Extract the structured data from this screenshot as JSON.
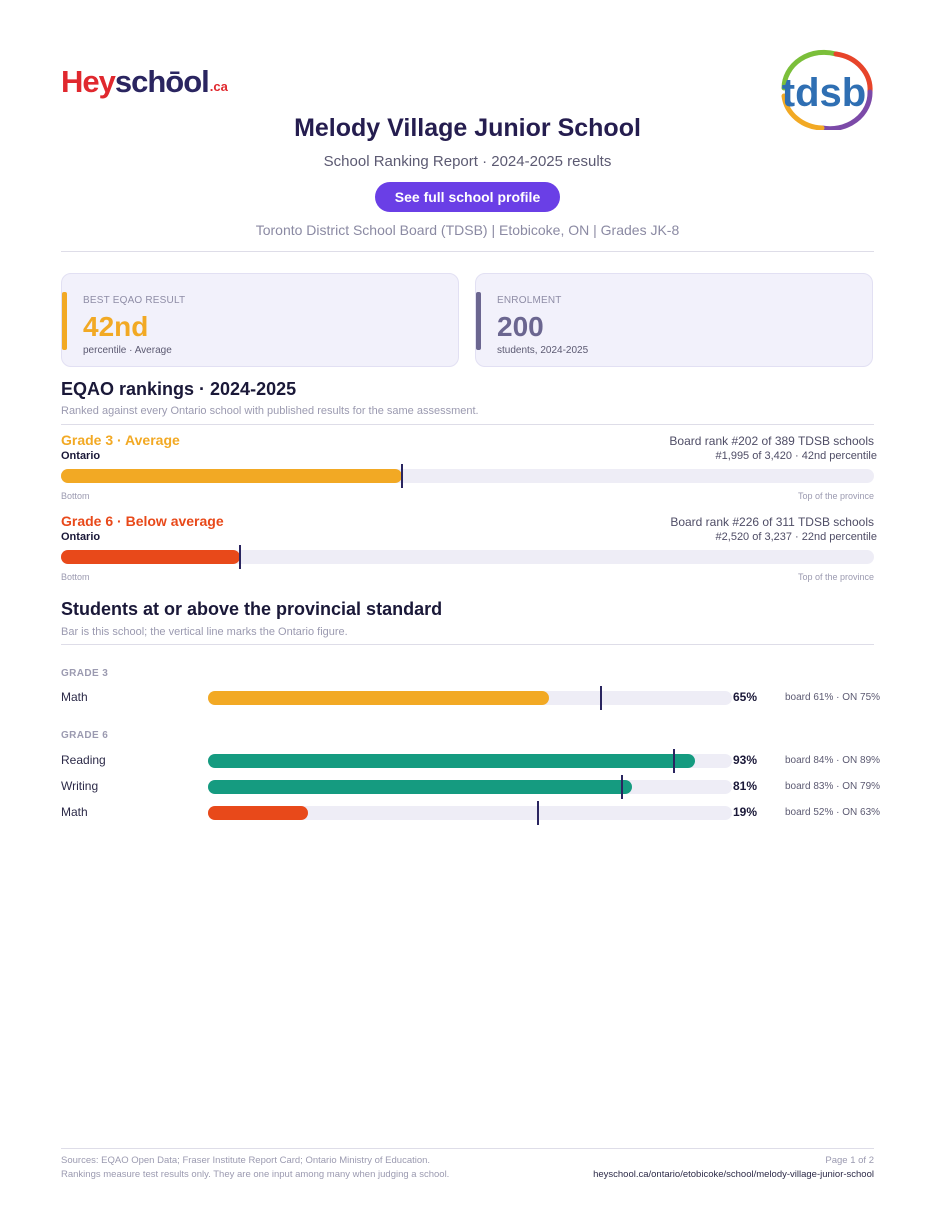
{
  "header": {
    "brand_hey": "Hey",
    "brand_school": "schōol",
    "brand_ca": ".ca",
    "board_logo_text": "tdsb",
    "school_name": "Melody Village Junior School",
    "subtitle": "School Ranking Report  ·  2024-2025 results",
    "profile_button_label": "See full school profile",
    "meta_line": "Toronto District School Board (TDSB)  |  Etobicoke, ON  |  Grades JK-8"
  },
  "cards": {
    "eqao": {
      "label": "BEST EQAO RESULT",
      "value": "42nd",
      "note": "percentile  ·  Average",
      "accent": "#f2a924"
    },
    "enrolment": {
      "label": "ENROLMENT",
      "value": "200",
      "note": "students, 2024-2025",
      "accent": "#6b6690"
    }
  },
  "rankings": {
    "title": "EQAO rankings  ·  2024-2025",
    "subtitle": "Ranked against every Ontario school with published results for the same assessment.",
    "axis_left": "Bottom",
    "axis_right": "Top of the province",
    "items": [
      {
        "label": "Grade 3  ·  Average",
        "scope": "Ontario",
        "board_rank": "Board rank #202 of 389 TDSB schools",
        "province_rank": "#1,995 of 3,420  ·  42nd percentile",
        "percentile": 42,
        "color": "#f2a924"
      },
      {
        "label": "Grade 6  ·  Below average",
        "scope": "Ontario",
        "board_rank": "Board rank #226 of 311 TDSB schools",
        "province_rank": "#2,520 of 3,237  ·  22nd percentile",
        "percentile": 22,
        "color": "#e8491a"
      }
    ]
  },
  "standards": {
    "title": "Students at or above the provincial standard",
    "subtitle": "Bar is this school; the vertical line marks the Ontario figure.",
    "groups": [
      {
        "grade": "GRADE 3",
        "rows": [
          {
            "subject": "Math",
            "pct": 65,
            "pct_label": "65%",
            "compare": "board 61%  ·  ON 75%",
            "ontario": 75,
            "color": "#f2a924"
          }
        ]
      },
      {
        "grade": "GRADE 6",
        "rows": [
          {
            "subject": "Reading",
            "pct": 93,
            "pct_label": "93%",
            "compare": "board 84%  ·  ON 89%",
            "ontario": 89,
            "color": "#159b80"
          },
          {
            "subject": "Writing",
            "pct": 81,
            "pct_label": "81%",
            "compare": "board 83%  ·  ON 79%",
            "ontario": 79,
            "color": "#159b80"
          },
          {
            "subject": "Math",
            "pct": 19,
            "pct_label": "19%",
            "compare": "board 52%  ·  ON 63%",
            "ontario": 63,
            "color": "#e8491a"
          }
        ]
      }
    ]
  },
  "footer": {
    "sources": "Sources: EQAO Open Data; Fraser Institute Report Card; Ontario Ministry of Education.",
    "disclaimer": "Rankings measure test results only. They are one input among many when judging a school.",
    "page": "Page 1 of 2",
    "url": "heyschool.ca/ontario/etobicoke/school/melody-village-junior-school"
  }
}
